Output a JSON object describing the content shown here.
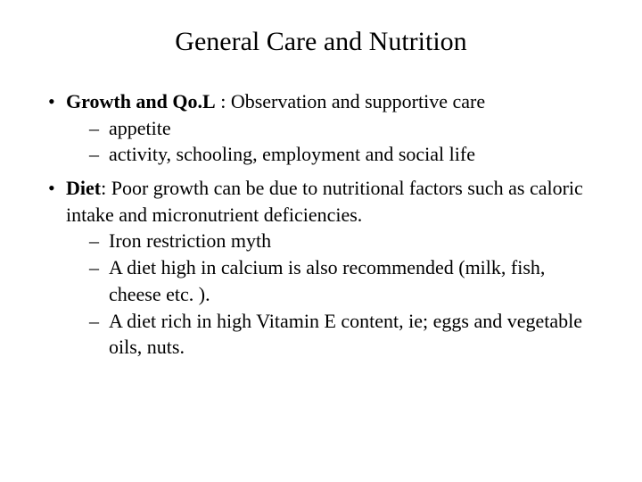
{
  "title": "General Care and Nutrition",
  "items": [
    {
      "lead": "Growth and Qo.L",
      "separator": " : ",
      "rest": "Observation and supportive care",
      "subs": [
        "appetite",
        "activity, schooling, employment and social life"
      ]
    },
    {
      "lead": "Diet",
      "separator": ": ",
      "rest": "Poor growth can be due to nutritional factors such as caloric intake and micronutrient deficiencies.",
      "subs": [
        "Iron restriction myth",
        "A diet high in calcium is also recommended (milk, fish, cheese etc. ).",
        "A diet rich in high Vitamin E content, ie; eggs and vegetable oils, nuts."
      ]
    }
  ]
}
